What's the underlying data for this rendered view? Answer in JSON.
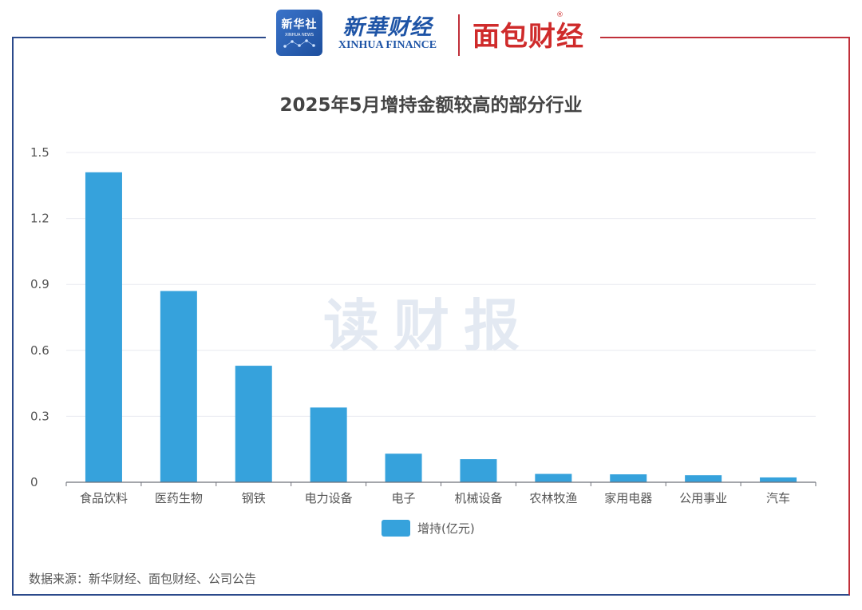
{
  "header": {
    "logo_badge_line1": "新华社",
    "logo_badge_line2": "XINHUA NEWS",
    "logo_xinhua_cn": "新華财经",
    "logo_xinhua_en": "XINHUA FINANCE",
    "logo_mianbao": "面包财经",
    "logo_registered": "®"
  },
  "watermark": "读财报",
  "colors": {
    "bar": "#36a2dc",
    "frame_left": "#2b4a8b",
    "frame_right": "#c0303a",
    "grid": "#e8eaf0"
  },
  "chart_data": {
    "type": "bar",
    "title": "2025年5月增持金额较高的部分行业",
    "categories": [
      "食品饮料",
      "医药生物",
      "钢铁",
      "电力设备",
      "电子",
      "机械设备",
      "农林牧渔",
      "家用电器",
      "公用事业",
      "汽车"
    ],
    "series": [
      {
        "name": "增持(亿元)",
        "values": [
          1.41,
          0.87,
          0.53,
          0.34,
          0.13,
          0.105,
          0.038,
          0.036,
          0.032,
          0.022
        ]
      }
    ],
    "yticks": [
      "0",
      "0.3",
      "0.6",
      "0.9",
      "1.2",
      "1.5"
    ],
    "ylim": [
      0,
      1.5
    ],
    "grid": true,
    "legend_position": "bottom-center"
  },
  "source": "数据来源：新华财经、面包财经、公司公告"
}
